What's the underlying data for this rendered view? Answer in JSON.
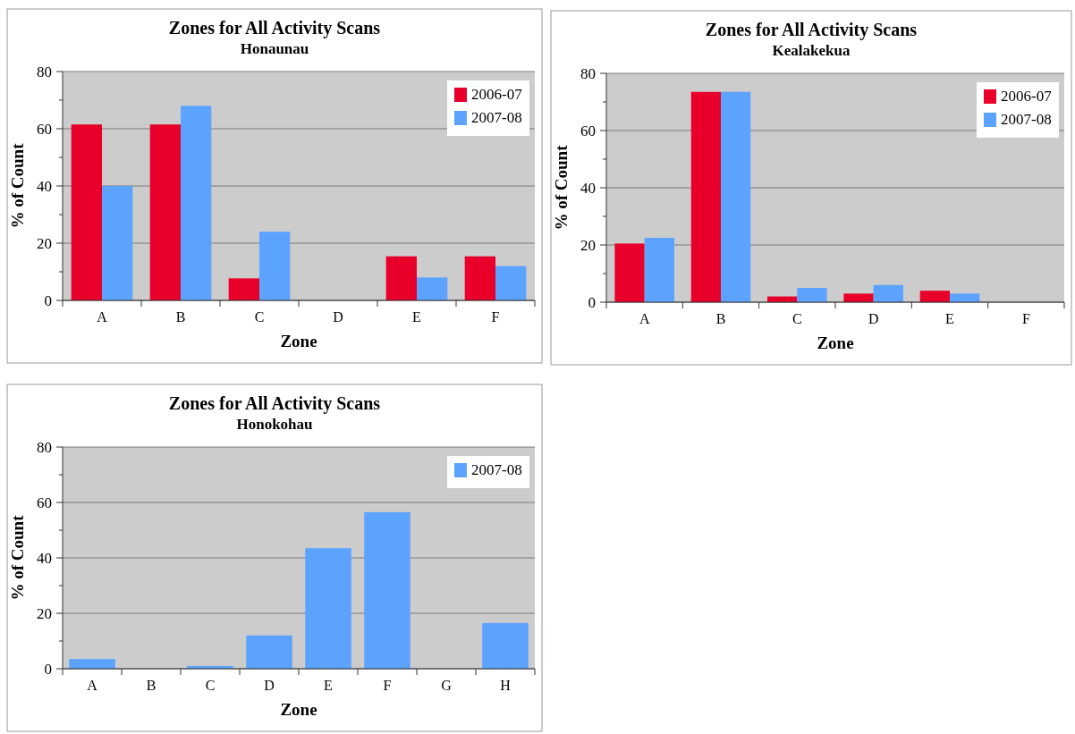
{
  "chart_data": [
    {
      "type": "bar",
      "title": "Zones for All Activity Scans",
      "subtitle": "Honaunau",
      "xlabel": "Zone",
      "ylabel": "% of Count",
      "categories": [
        "A",
        "B",
        "C",
        "D",
        "E",
        "F"
      ],
      "series": [
        {
          "name": "2006-07",
          "color": "#e8002a",
          "values": [
            61.5,
            61.5,
            7.7,
            0,
            15.4,
            15.4
          ]
        },
        {
          "name": "2007-08",
          "color": "#5ba3ff",
          "values": [
            40,
            68,
            24,
            0,
            8,
            12
          ]
        }
      ],
      "ylim": [
        0,
        80
      ],
      "yticks": [
        0,
        {
          "value": 10,
          "label": null
        },
        20,
        {
          "value": 30,
          "label": null
        },
        40,
        {
          "value": 50,
          "label": null
        },
        60,
        {
          "value": 70,
          "label": null
        },
        80
      ],
      "grid": "y",
      "legend": "top right"
    },
    {
      "type": "bar",
      "title": "Zones for All Activity Scans",
      "subtitle": "Kealakekua",
      "xlabel": "Zone",
      "ylabel": "% of Count",
      "categories": [
        "A",
        "B",
        "C",
        "D",
        "E",
        "F"
      ],
      "series": [
        {
          "name": "2006-07",
          "color": "#e8002a",
          "values": [
            20.5,
            73.5,
            2,
            3,
            4,
            0
          ]
        },
        {
          "name": "2007-08",
          "color": "#5ba3ff",
          "values": [
            22.5,
            73.5,
            5,
            6,
            3,
            0
          ]
        }
      ],
      "ylim": [
        0,
        80
      ],
      "yticks": [
        0,
        {
          "value": 10,
          "label": null
        },
        20,
        {
          "value": 30,
          "label": null
        },
        40,
        {
          "value": 50,
          "label": null
        },
        60,
        {
          "value": 70,
          "label": null
        },
        80
      ],
      "grid": "y",
      "legend": "top right"
    },
    {
      "type": "bar",
      "title": "Zones for All Activity Scans",
      "subtitle": "Honokohau",
      "xlabel": "Zone",
      "ylabel": "% of Count",
      "categories": [
        "A",
        "B",
        "C",
        "D",
        "E",
        "F",
        "G",
        "H"
      ],
      "series": [
        {
          "name": "2007-08",
          "color": "#5ba3ff",
          "values": [
            3.5,
            0,
            1,
            12,
            43.5,
            56.5,
            0,
            16.5
          ]
        }
      ],
      "ylim": [
        0,
        80
      ],
      "yticks": [
        0,
        {
          "value": 10,
          "label": null
        },
        20,
        {
          "value": 30,
          "label": null
        },
        40,
        {
          "value": 50,
          "label": null
        },
        60,
        {
          "value": 70,
          "label": null
        },
        80
      ],
      "grid": "y",
      "legend": "top right"
    }
  ]
}
